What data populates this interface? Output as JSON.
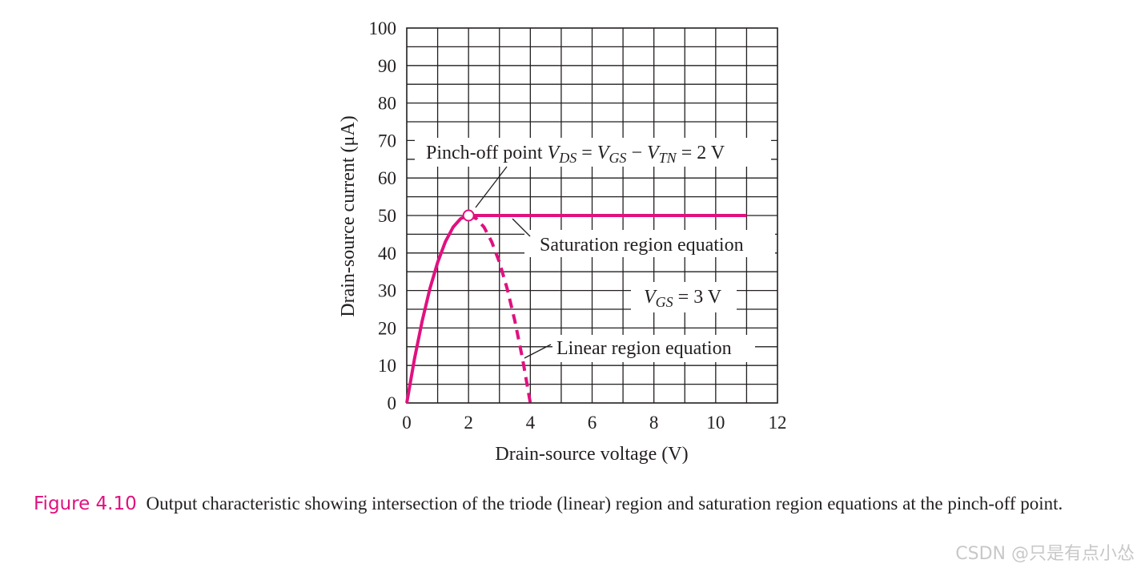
{
  "chart_data": {
    "type": "line",
    "title": "",
    "xlabel": "Drain-source voltage (V)",
    "ylabel": "Drain-source current (μA)",
    "xlim": [
      0,
      12
    ],
    "ylim": [
      0,
      100
    ],
    "x_ticks": [
      0,
      2,
      4,
      6,
      8,
      10,
      12
    ],
    "y_ticks": [
      0,
      10,
      20,
      30,
      40,
      50,
      60,
      70,
      80,
      90,
      100
    ],
    "grid": true,
    "series": [
      {
        "name": "Linear region equation (solid, 0–2 V)",
        "style": "solid",
        "x": [
          0,
          0.25,
          0.5,
          0.75,
          1.0,
          1.25,
          1.5,
          1.75,
          2.0
        ],
        "y": [
          0,
          11.7,
          21.9,
          30.5,
          37.5,
          43.0,
          46.9,
          49.2,
          50.0
        ]
      },
      {
        "name": "Linear region equation (dashed, 2–4 V)",
        "style": "dashed",
        "x": [
          2.0,
          2.25,
          2.5,
          2.75,
          3.0,
          3.25,
          3.5,
          3.75,
          4.0
        ],
        "y": [
          50.0,
          49.2,
          46.9,
          43.0,
          37.5,
          30.5,
          21.9,
          11.7,
          0
        ]
      },
      {
        "name": "Saturation region equation",
        "style": "solid",
        "x": [
          2,
          11
        ],
        "y": [
          50,
          50
        ]
      }
    ],
    "pinch_off_point": {
      "x": 2,
      "y": 50
    },
    "color": "#e0117f",
    "annotations": {
      "pinch_off": {
        "prefix": "Pinch-off point ",
        "v1": "V",
        "s1": "DS",
        "eq1": " = ",
        "v2": "V",
        "s2": "GS",
        "minus": " − ",
        "v3": "V",
        "s3": "TN",
        "eq2": " = 2 V"
      },
      "saturation": "Saturation region equation",
      "vgs": {
        "v": "V",
        "s": "GS",
        "rest": " = 3 V"
      },
      "linear": "Linear region equation"
    }
  },
  "caption": {
    "label": "Figure 4.10",
    "text": "Output characteristic showing intersection of the triode (linear) region and saturation region equations at the pinch-off point."
  },
  "watermark": "CSDN @只是有点小怂"
}
